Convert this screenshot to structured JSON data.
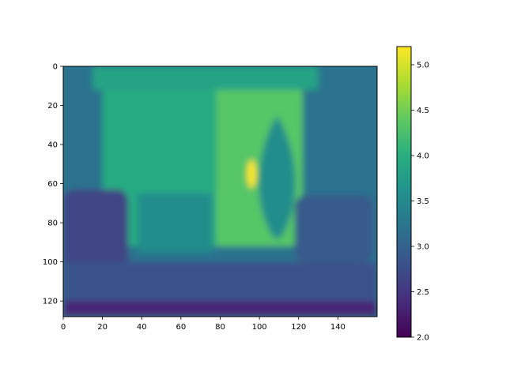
{
  "chart_data": {
    "type": "heatmap",
    "title": "",
    "xlabel": "",
    "ylabel": "",
    "colormap": "viridis",
    "grid": false,
    "image_extent": {
      "x": [
        0,
        160
      ],
      "y": [
        0,
        128
      ]
    },
    "x_ticks": [
      0,
      20,
      40,
      60,
      80,
      100,
      120,
      140
    ],
    "y_ticks": [
      0,
      20,
      40,
      60,
      80,
      100,
      120
    ],
    "colorbar": {
      "range": [
        2.0,
        5.2
      ],
      "ticks": [
        "2.0",
        "2.5",
        "3.0",
        "3.5",
        "4.0",
        "4.5",
        "5.0"
      ]
    },
    "scene_regions": [
      {
        "region": "background",
        "approx_value": 3.2
      },
      {
        "region": "back-wall",
        "x": [
          20,
          78
        ],
        "y": [
          0,
          92
        ],
        "approx_value": 3.95
      },
      {
        "region": "upper-band",
        "x": [
          15,
          130
        ],
        "y": [
          0,
          12
        ],
        "approx_value": 3.85
      },
      {
        "region": "window-bright",
        "x": [
          78,
          122
        ],
        "y": [
          12,
          92
        ],
        "approx_value": 4.35
      },
      {
        "region": "window-peak",
        "x": [
          96,
          96
        ],
        "y": [
          55,
          55
        ],
        "approx_value": 5.2
      },
      {
        "region": "person-silhouette",
        "x": [
          98,
          120
        ],
        "y": [
          25,
          88
        ],
        "approx_value": 3.55
      },
      {
        "region": "chair-back",
        "x": [
          38,
          76
        ],
        "y": [
          65,
          95
        ],
        "approx_value": 3.55
      },
      {
        "region": "left-chair",
        "x": [
          0,
          33
        ],
        "y": [
          63,
          105
        ],
        "approx_value": 2.65
      },
      {
        "region": "right-chair",
        "x": [
          118,
          158
        ],
        "y": [
          66,
          100
        ],
        "approx_value": 2.9
      },
      {
        "region": "floor",
        "x": [
          0,
          160
        ],
        "y": [
          100,
          128
        ],
        "approx_value": 2.8
      },
      {
        "region": "floor-bottom",
        "x": [
          0,
          160
        ],
        "y": [
          120,
          128
        ],
        "approx_value": 2.35
      }
    ]
  }
}
